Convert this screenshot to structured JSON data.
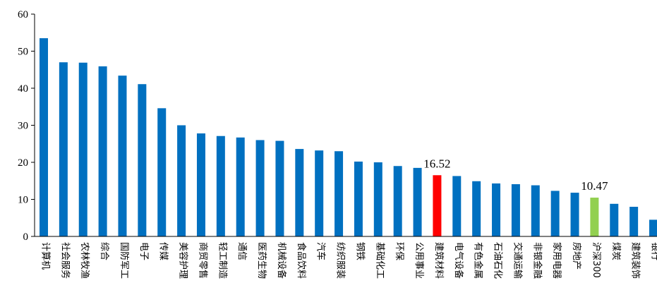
{
  "chart_data": {
    "type": "bar",
    "title": "",
    "xlabel": "",
    "ylabel": "",
    "ylim": [
      0,
      60
    ],
    "yticks": [
      0,
      10,
      20,
      30,
      40,
      50,
      60
    ],
    "grid": false,
    "legend": "none",
    "categories": [
      "计算机",
      "社会服务",
      "农林牧渔",
      "综合",
      "国防军工",
      "电子",
      "传媒",
      "美容护理",
      "商贸零售",
      "轻工制造",
      "通信",
      "医药生物",
      "机械设备",
      "食品饮料",
      "汽车",
      "纺织服装",
      "钢铁",
      "基础化工",
      "环保",
      "公用事业",
      "建筑材料",
      "电气设备",
      "有色金属",
      "石油石化",
      "交通运输",
      "非银金融",
      "家用电器",
      "房地产",
      "沪深300",
      "煤炭",
      "建筑装饰",
      "银行"
    ],
    "values": [
      53.5,
      47.0,
      46.9,
      45.9,
      43.4,
      41.1,
      34.6,
      30.0,
      27.8,
      27.1,
      26.7,
      26.0,
      25.8,
      23.6,
      23.2,
      23.0,
      20.2,
      20.0,
      19.0,
      18.5,
      16.52,
      16.3,
      14.9,
      14.3,
      14.1,
      13.8,
      12.3,
      11.8,
      10.47,
      8.8,
      8.0,
      4.5
    ],
    "colors": {
      "default": "#0070C0",
      "highlight": "#FF0000",
      "benchmark": "#92D050"
    },
    "highlight_category": "建筑材料",
    "benchmark_category": "沪深300",
    "annotations": [
      {
        "category": "建筑材料",
        "text": "16.52"
      },
      {
        "category": "沪深300",
        "text": "10.47"
      }
    ]
  }
}
